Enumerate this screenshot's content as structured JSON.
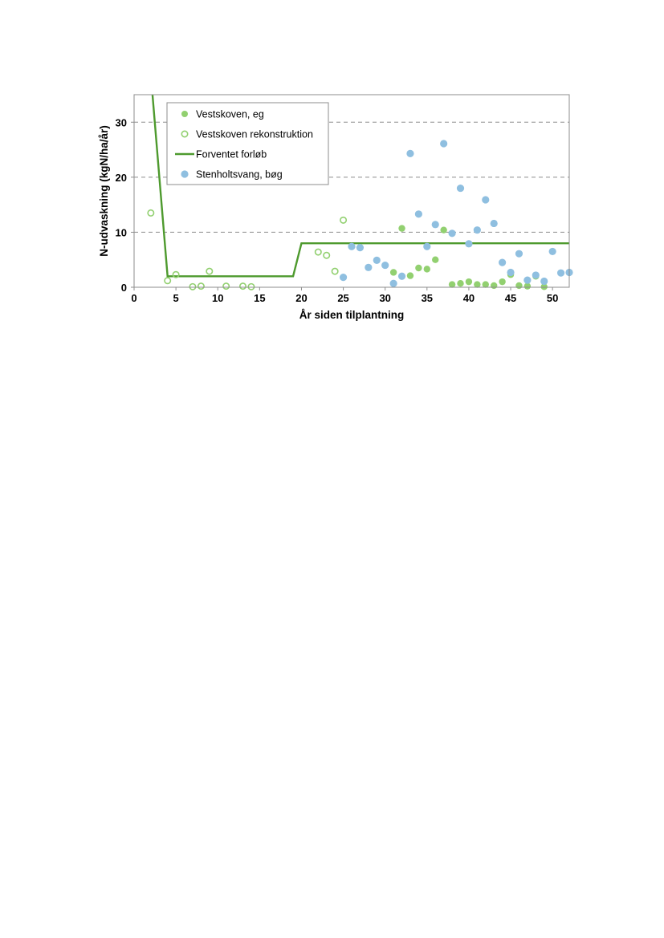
{
  "chart_data": {
    "type": "scatter",
    "xlabel": "År siden tilplantning",
    "ylabel": "N-udvaskning (kgN/ha/år)",
    "xlim": [
      0,
      52
    ],
    "ylim": [
      0,
      35
    ],
    "xticks": [
      "0",
      "5",
      "10",
      "15",
      "20",
      "25",
      "30",
      "35",
      "40",
      "45",
      "50"
    ],
    "yticks": [
      "0",
      "10",
      "20",
      "30"
    ],
    "grid": "horizontal dashed at 10, 20, 30",
    "legend_position": "top-left",
    "series": [
      {
        "name": "Vestskoven, eg",
        "marker": "filled-circle",
        "color": "#92d070",
        "points": [
          [
            31,
            2.7
          ],
          [
            32,
            10.7
          ],
          [
            33,
            2.1
          ],
          [
            34,
            3.5
          ],
          [
            35,
            3.3
          ],
          [
            36,
            5.0
          ],
          [
            37,
            10.4
          ],
          [
            38,
            0.5
          ],
          [
            39,
            0.7
          ],
          [
            40,
            1.0
          ],
          [
            41,
            0.5
          ],
          [
            42,
            0.5
          ],
          [
            43,
            0.3
          ],
          [
            44,
            1.0
          ],
          [
            45,
            2.3
          ],
          [
            46,
            0.3
          ],
          [
            47,
            0.2
          ],
          [
            48,
            2.0
          ],
          [
            49,
            0.1
          ]
        ]
      },
      {
        "name": "Vestskoven rekonstruktion",
        "marker": "open-circle",
        "color": "#92d070",
        "points": [
          [
            2,
            13.5
          ],
          [
            4,
            1.2
          ],
          [
            5,
            2.3
          ],
          [
            7,
            0.1
          ],
          [
            8,
            0.2
          ],
          [
            9,
            2.9
          ],
          [
            11,
            0.2
          ],
          [
            13,
            0.2
          ],
          [
            14,
            0.1
          ],
          [
            22,
            6.4
          ],
          [
            23,
            5.8
          ],
          [
            24,
            2.9
          ],
          [
            25,
            12.2
          ]
        ]
      },
      {
        "name": "Forventet forløb",
        "marker": "line",
        "color": "#4e9a2e",
        "points": [
          [
            2.2,
            35
          ],
          [
            4,
            2
          ],
          [
            19,
            2
          ],
          [
            20,
            8
          ],
          [
            52,
            8
          ]
        ]
      },
      {
        "name": "Stenholtsvang, bøg",
        "marker": "filled-circle",
        "color": "#8fbfe0",
        "points": [
          [
            25,
            1.8
          ],
          [
            26,
            7.4
          ],
          [
            27,
            7.2
          ],
          [
            28,
            3.6
          ],
          [
            29,
            4.9
          ],
          [
            30,
            4.0
          ],
          [
            31,
            0.7
          ],
          [
            32,
            2.0
          ],
          [
            33,
            24.3
          ],
          [
            34,
            13.3
          ],
          [
            35,
            7.4
          ],
          [
            36,
            11.4
          ],
          [
            37,
            26.1
          ],
          [
            38,
            9.8
          ],
          [
            39,
            18.0
          ],
          [
            40,
            7.9
          ],
          [
            41,
            10.4
          ],
          [
            42,
            15.9
          ],
          [
            43,
            11.6
          ],
          [
            44,
            4.5
          ],
          [
            45,
            2.7
          ],
          [
            46,
            6.1
          ],
          [
            47,
            1.3
          ],
          [
            48,
            2.2
          ],
          [
            49,
            1.1
          ],
          [
            50,
            6.5
          ],
          [
            51,
            2.6
          ],
          [
            52,
            2.7
          ]
        ]
      }
    ]
  }
}
